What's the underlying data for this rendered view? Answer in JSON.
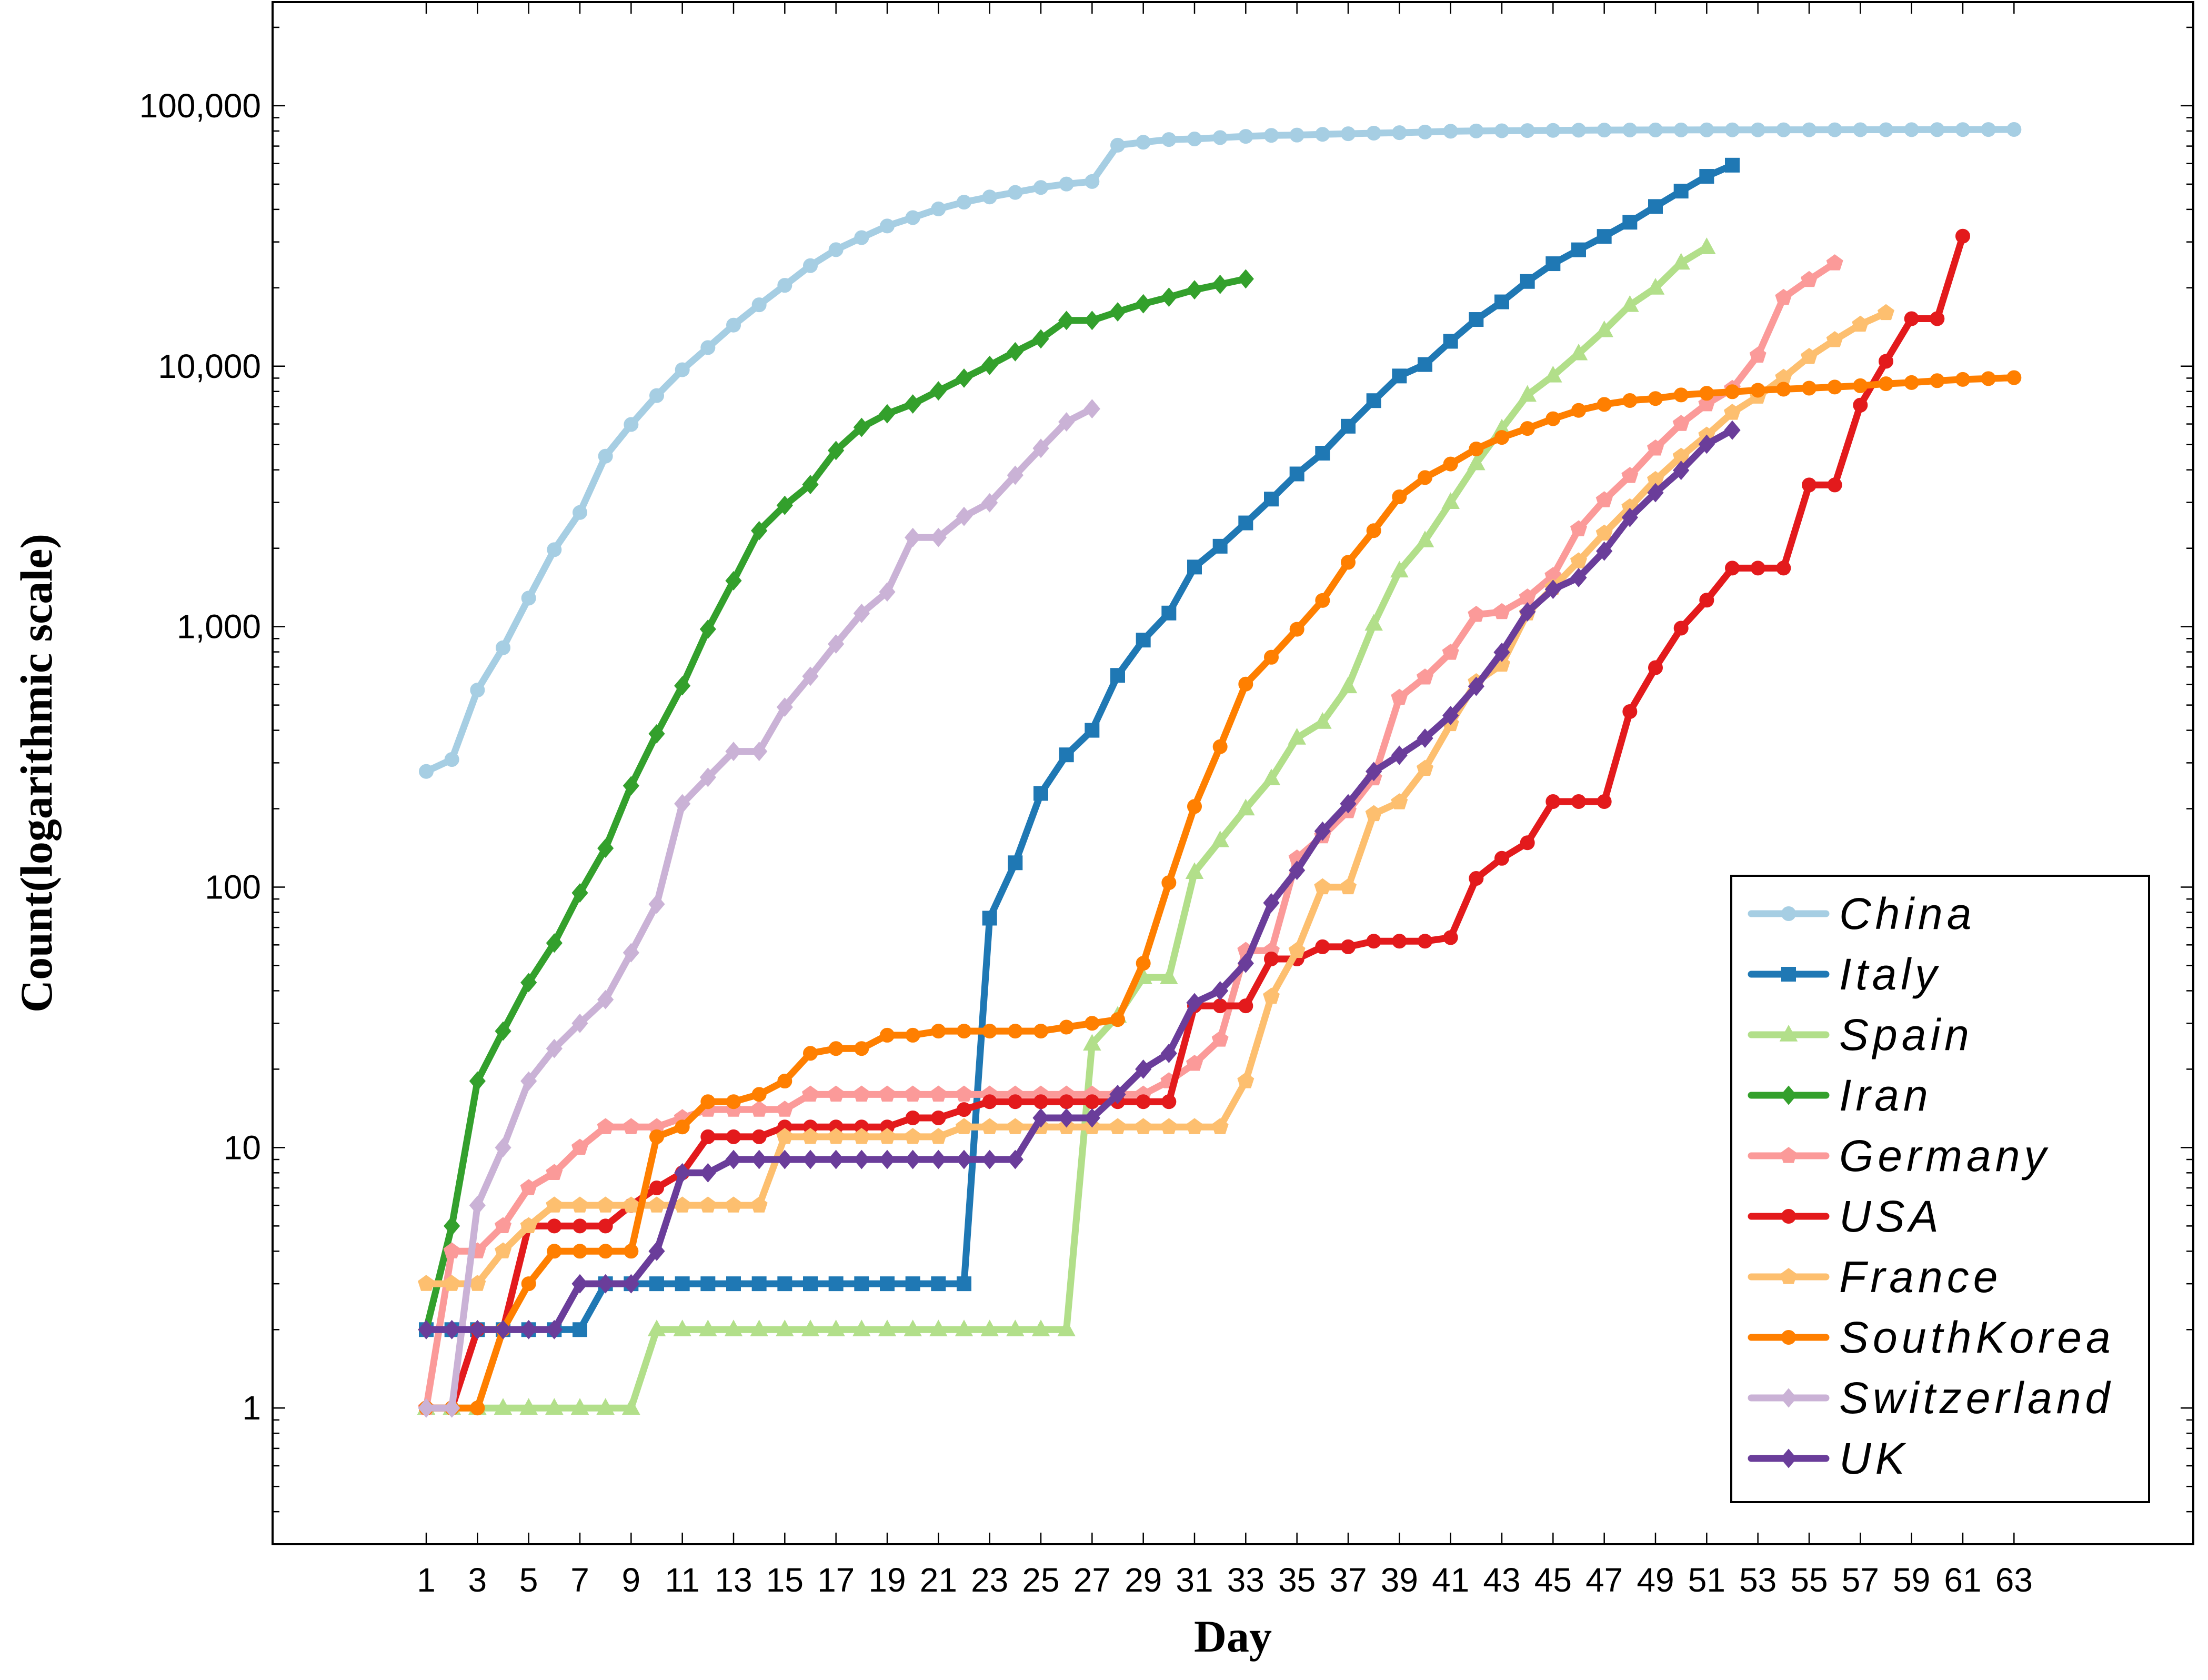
{
  "chart_data": {
    "type": "line",
    "xlabel": "Day",
    "ylabel": "Count(logarithmic scale)",
    "yscale": "log",
    "ylim": [
      0.3,
      250000
    ],
    "xlim": [
      -5,
      70
    ],
    "xticks": [
      1,
      3,
      5,
      7,
      9,
      11,
      13,
      15,
      17,
      19,
      21,
      23,
      25,
      27,
      29,
      31,
      33,
      35,
      37,
      39,
      41,
      43,
      45,
      47,
      49,
      51,
      53,
      55,
      57,
      59,
      61,
      63
    ],
    "yticks": [
      {
        "value": 1,
        "label": "1"
      },
      {
        "value": 10,
        "label": "10"
      },
      {
        "value": 100,
        "label": "100"
      },
      {
        "value": 1000,
        "label": "1,000"
      },
      {
        "value": 10000,
        "label": "10,000"
      },
      {
        "value": 100000,
        "label": "100,000"
      }
    ],
    "grid": false,
    "legend_position": "bottom-right",
    "series": [
      {
        "name": "China",
        "color": "#a6cee3",
        "marker": "circle",
        "values": [
          278,
          309,
          571,
          830,
          1287,
          1975,
          2744,
          4515,
          5974,
          7711,
          9692,
          11791,
          14380,
          17205,
          20438,
          24324,
          28018,
          31161,
          34546,
          37198,
          40171,
          42638,
          44653,
          46472,
          48548,
          50054,
          51174,
          70548,
          72436,
          74185,
          74576,
          75465,
          76288,
          76936,
          77150,
          77658,
          78064,
          78497,
          78824,
          79251,
          79824,
          80026,
          80151,
          80270,
          80409,
          80552,
          80651,
          80695,
          80735,
          80754,
          80778,
          80793,
          80813,
          80824,
          80844,
          80860,
          80881,
          80894,
          80928,
          80967,
          81008,
          81054,
          81093
        ]
      },
      {
        "name": "Italy",
        "color": "#1f78b4",
        "marker": "square",
        "values": [
          2,
          2,
          2,
          2,
          2,
          2,
          2,
          3,
          3,
          3,
          3,
          3,
          3,
          3,
          3,
          3,
          3,
          3,
          3,
          3,
          3,
          3,
          76,
          124,
          229,
          322,
          400,
          650,
          888,
          1128,
          1694,
          2036,
          2502,
          3089,
          3858,
          4636,
          5883,
          7375,
          9172,
          10149,
          12462,
          15113,
          17660,
          21157,
          24747,
          27980,
          31506,
          35713,
          41035,
          47021,
          53578,
          59138
        ]
      },
      {
        "name": "Spain",
        "color": "#b2df8a",
        "marker": "triangle",
        "values": [
          1,
          1,
          1,
          1,
          1,
          1,
          1,
          1,
          1,
          2,
          2,
          2,
          2,
          2,
          2,
          2,
          2,
          2,
          2,
          2,
          2,
          2,
          2,
          2,
          2,
          2,
          25,
          32,
          45,
          45,
          114,
          151,
          200,
          261,
          374,
          430,
          589,
          1024,
          1639,
          2140,
          3004,
          4231,
          5753,
          7753,
          9191,
          11178,
          13716,
          17147,
          19980,
          24926,
          28572
        ]
      },
      {
        "name": "Iran",
        "color": "#33a02c",
        "marker": "diamond",
        "values": [
          2,
          5,
          18,
          28,
          43,
          61,
          95,
          141,
          245,
          388,
          593,
          978,
          1501,
          2336,
          2922,
          3513,
          4747,
          5823,
          6566,
          7161,
          8042,
          9000,
          10075,
          11364,
          12729,
          14991,
          14991,
          16169,
          17361,
          18407,
          19644,
          20610,
          21638
        ]
      },
      {
        "name": "Germany",
        "color": "#fb9a99",
        "marker": "pentagon",
        "values": [
          1,
          4,
          4,
          5,
          7,
          8,
          10,
          12,
          12,
          12,
          13,
          14,
          14,
          14,
          14,
          16,
          16,
          16,
          16,
          16,
          16,
          16,
          16,
          16,
          16,
          16,
          16,
          16,
          16,
          18,
          21,
          26,
          57,
          57,
          129,
          157,
          196,
          262,
          534,
          639,
          795,
          1112,
          1139,
          1296,
          1567,
          2369,
          3062,
          3795,
          4838,
          6012,
          7156,
          8198,
          10999,
          18323,
          21463,
          24873
        ]
      },
      {
        "name": "USA",
        "color": "#e31a1c",
        "marker": "circle",
        "values": [
          1,
          1,
          2,
          2,
          5,
          5,
          5,
          5,
          6,
          7,
          8,
          11,
          11,
          11,
          12,
          12,
          12,
          12,
          12,
          13,
          13,
          14,
          15,
          15,
          15,
          15,
          15,
          15,
          15,
          15,
          35,
          35,
          35,
          53,
          53,
          59,
          59,
          62,
          62,
          62,
          64,
          108,
          129,
          148,
          213,
          213,
          213,
          472,
          696,
          987,
          1264,
          1678,
          1678,
          1678,
          3500,
          3500,
          7087,
          10442,
          15219,
          15219,
          31573
        ]
      },
      {
        "name": "France",
        "color": "#fdbf6f",
        "marker": "pentagon",
        "values": [
          3,
          3,
          3,
          4,
          5,
          6,
          6,
          6,
          6,
          6,
          6,
          6,
          6,
          6,
          11,
          11,
          11,
          11,
          11,
          11,
          11,
          12,
          12,
          12,
          12,
          12,
          12,
          12,
          12,
          12,
          12,
          12,
          18,
          38,
          57,
          100,
          100,
          191,
          212,
          285,
          423,
          613,
          716,
          1126,
          1412,
          1784,
          2281,
          2876,
          3661,
          4499,
          5423,
          6633,
          7652,
          9043,
          10871,
          12612,
          14459,
          16018
        ]
      },
      {
        "name": "SouthKorea",
        "color": "#ff7f00",
        "marker": "circle",
        "values": [
          1,
          1,
          1,
          2,
          3,
          4,
          4,
          4,
          4,
          11,
          12,
          15,
          15,
          16,
          18,
          23,
          24,
          24,
          27,
          27,
          28,
          28,
          28,
          28,
          28,
          29,
          30,
          31,
          51,
          104,
          204,
          346,
          602,
          763,
          977,
          1261,
          1766,
          2337,
          3150,
          3736,
          4212,
          4812,
          5328,
          5766,
          6284,
          6767,
          7134,
          7382,
          7513,
          7755,
          7869,
          7979,
          8086,
          8162,
          8236,
          8320,
          8413,
          8565,
          8652,
          8799,
          8897,
          8961,
          9037
        ]
      },
      {
        "name": "Switzerland",
        "color": "#cab2d6",
        "marker": "diamond",
        "values": [
          1,
          1,
          6,
          10,
          18,
          24,
          30,
          37,
          56,
          86,
          209,
          264,
          332,
          332,
          491,
          645,
          858,
          1125,
          1359,
          2200,
          2200,
          2650,
          2990,
          3815,
          4840,
          6113,
          6863
        ]
      },
      {
        "name": "UK",
        "color": "#6a3d9a",
        "marker": "diamond",
        "values": [
          2,
          2,
          2,
          2,
          2,
          2,
          3,
          3,
          3,
          4,
          8,
          8,
          9,
          9,
          9,
          9,
          9,
          9,
          9,
          9,
          9,
          9,
          9,
          9,
          13,
          13,
          13,
          16,
          20,
          23,
          36,
          40,
          51,
          87,
          116,
          164,
          209,
          278,
          321,
          373,
          456,
          590,
          797,
          1140,
          1391,
          1543,
          1950,
          2626,
          3269,
          3983,
          5018,
          5683
        ]
      }
    ]
  }
}
